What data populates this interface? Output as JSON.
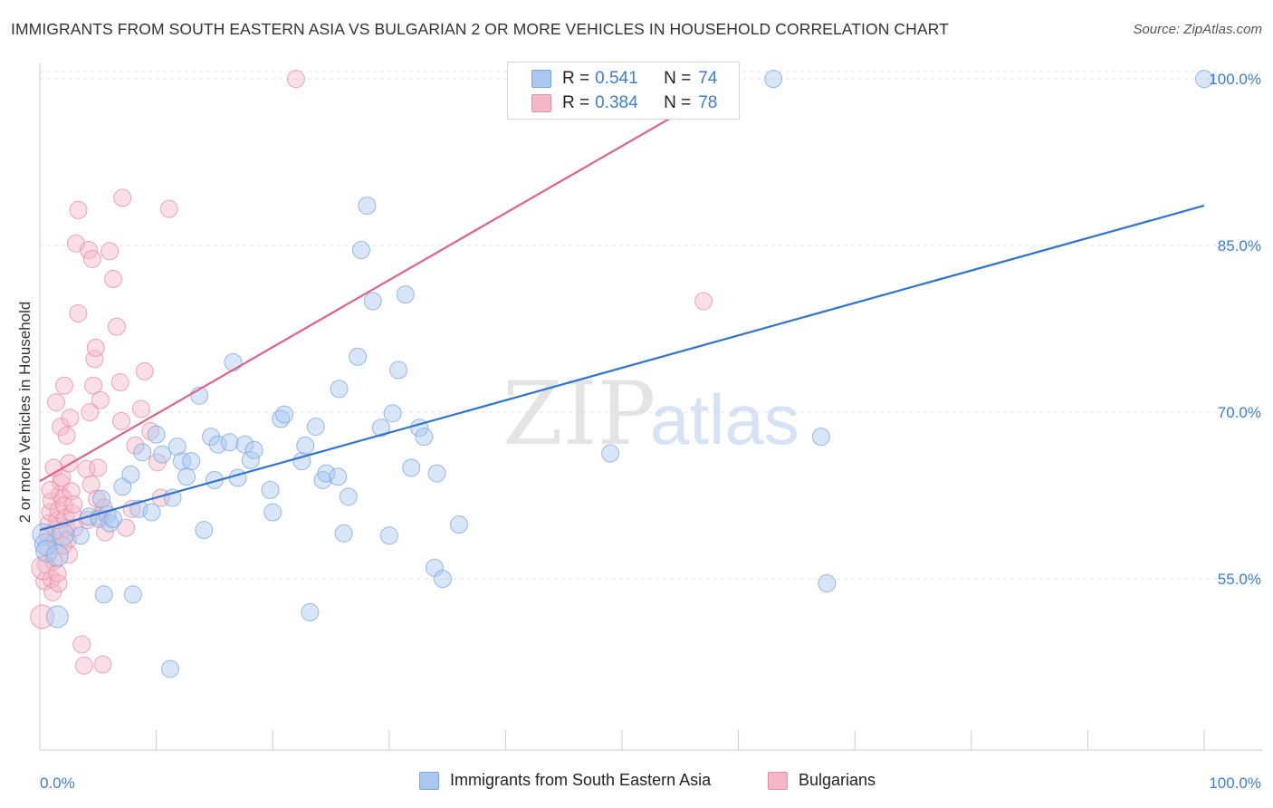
{
  "title": "IMMIGRANTS FROM SOUTH EASTERN ASIA VS BULGARIAN 2 OR MORE VEHICLES IN HOUSEHOLD CORRELATION CHART",
  "source": "Source: ZipAtlas.com",
  "watermark": {
    "zip": "ZIP",
    "atlas": "atlas"
  },
  "legend": {
    "r_label": "R =",
    "n_label": "N =",
    "series": [
      {
        "r": "0.541",
        "n": "74",
        "color": "#a9c7ef"
      },
      {
        "r": "0.384",
        "n": "78",
        "color": "#f4b7c8"
      }
    ]
  },
  "bottom_legend": [
    "Immigrants from South Eastern Asia",
    "Bulgarians"
  ],
  "chart_data": {
    "type": "scatter",
    "title": "IMMIGRANTS FROM SOUTH EASTERN ASIA VS BULGARIAN 2 OR MORE VEHICLES IN HOUSEHOLD CORRELATION CHART",
    "xlabel": "",
    "ylabel": "2 or more Vehicles in Household",
    "xlim": [
      0,
      100
    ],
    "ylim": [
      39.6,
      101.4
    ],
    "x_tick_labels": [
      "0.0%",
      "100.0%"
    ],
    "y_ticks": [
      55.0,
      70.0,
      85.0,
      100.0
    ],
    "y_tick_labels": [
      "55.0%",
      "70.0%",
      "85.0%",
      "100.0%"
    ],
    "grid": "horizontal dashed",
    "legend_position": "top-center",
    "series": [
      {
        "name": "Immigrants from South Eastern Asia",
        "color": "#a9c7ef",
        "stroke": "#7aa6df",
        "trend": {
          "color": "#2e74d0",
          "x": [
            0,
            100
          ],
          "y": [
            59.4,
            88.6
          ]
        },
        "points": [
          [
            0.3,
            59.0
          ],
          [
            0.5,
            58.1
          ],
          [
            0.6,
            57.5
          ],
          [
            1.5,
            57.1
          ],
          [
            1.5,
            51.6
          ],
          [
            3.5,
            58.9
          ],
          [
            4.2,
            60.6
          ],
          [
            5.1,
            60.4
          ],
          [
            5.3,
            62.2
          ],
          [
            5.5,
            53.6
          ],
          [
            5.8,
            60.8
          ],
          [
            6.0,
            60.0
          ],
          [
            6.3,
            60.4
          ],
          [
            7.1,
            63.3
          ],
          [
            7.8,
            64.4
          ],
          [
            8.0,
            53.6
          ],
          [
            8.5,
            61.3
          ],
          [
            8.8,
            66.4
          ],
          [
            9.6,
            61.0
          ],
          [
            10.0,
            68.0
          ],
          [
            10.5,
            66.2
          ],
          [
            11.2,
            46.9
          ],
          [
            11.4,
            62.3
          ],
          [
            11.8,
            66.9
          ],
          [
            12.2,
            65.6
          ],
          [
            12.6,
            64.2
          ],
          [
            13.0,
            65.6
          ],
          [
            13.7,
            71.5
          ],
          [
            14.1,
            59.4
          ],
          [
            14.7,
            67.8
          ],
          [
            15.0,
            63.9
          ],
          [
            15.3,
            67.1
          ],
          [
            16.3,
            67.3
          ],
          [
            16.6,
            74.5
          ],
          [
            17.0,
            64.1
          ],
          [
            17.6,
            67.1
          ],
          [
            18.1,
            65.7
          ],
          [
            18.4,
            66.6
          ],
          [
            19.8,
            63.0
          ],
          [
            20.0,
            61.0
          ],
          [
            20.7,
            69.4
          ],
          [
            21.0,
            69.8
          ],
          [
            22.5,
            65.6
          ],
          [
            22.8,
            67.0
          ],
          [
            23.2,
            52.0
          ],
          [
            23.7,
            68.7
          ],
          [
            24.3,
            63.9
          ],
          [
            24.6,
            64.5
          ],
          [
            25.6,
            64.2
          ],
          [
            25.7,
            72.1
          ],
          [
            26.5,
            62.4
          ],
          [
            26.1,
            59.1
          ],
          [
            27.3,
            75.0
          ],
          [
            27.6,
            84.6
          ],
          [
            28.1,
            88.6
          ],
          [
            28.6,
            80.0
          ],
          [
            29.3,
            68.6
          ],
          [
            30.0,
            58.9
          ],
          [
            30.3,
            69.9
          ],
          [
            30.8,
            73.8
          ],
          [
            31.4,
            80.6
          ],
          [
            31.9,
            65.0
          ],
          [
            32.6,
            68.6
          ],
          [
            33.0,
            67.8
          ],
          [
            33.9,
            56.0
          ],
          [
            34.1,
            64.5
          ],
          [
            34.6,
            55.0
          ],
          [
            36.0,
            59.9
          ],
          [
            49.0,
            66.3
          ],
          [
            63.0,
            100.0
          ],
          [
            67.1,
            67.8
          ],
          [
            67.6,
            54.6
          ],
          [
            100.0,
            100.0
          ],
          [
            2.0,
            59.0
          ]
        ],
        "sizes_note": "most points r=10; larger markers at left edge"
      },
      {
        "name": "Bulgarians",
        "color": "#f4b7c8",
        "stroke": "#e98aa6",
        "trend": {
          "color": "#e0608a",
          "x": [
            0,
            60.0
          ],
          "y": [
            63.8,
            100.0
          ]
        },
        "points": [
          [
            0.2,
            51.6
          ],
          [
            0.4,
            54.8
          ],
          [
            0.5,
            56.3
          ],
          [
            0.6,
            57.9
          ],
          [
            0.7,
            59.0
          ],
          [
            0.8,
            60.0
          ],
          [
            0.9,
            61.0
          ],
          [
            1.0,
            62.0
          ],
          [
            1.0,
            55.0
          ],
          [
            1.1,
            53.8
          ],
          [
            1.2,
            56.6
          ],
          [
            1.3,
            58.4
          ],
          [
            1.4,
            59.4
          ],
          [
            1.5,
            60.3
          ],
          [
            1.6,
            61.2
          ],
          [
            1.7,
            62.6
          ],
          [
            1.8,
            63.7
          ],
          [
            1.9,
            64.1
          ],
          [
            2.0,
            62.3
          ],
          [
            2.1,
            61.6
          ],
          [
            2.2,
            60.5
          ],
          [
            2.3,
            59.6
          ],
          [
            2.4,
            58.5
          ],
          [
            2.5,
            57.2
          ],
          [
            1.6,
            54.6
          ],
          [
            1.4,
            70.9
          ],
          [
            1.8,
            68.7
          ],
          [
            2.1,
            72.4
          ],
          [
            2.3,
            67.9
          ],
          [
            2.5,
            65.4
          ],
          [
            2.6,
            69.5
          ],
          [
            2.7,
            62.9
          ],
          [
            2.8,
            60.9
          ],
          [
            2.9,
            61.7
          ],
          [
            3.0,
            59.6
          ],
          [
            3.1,
            85.2
          ],
          [
            3.3,
            88.2
          ],
          [
            3.3,
            78.9
          ],
          [
            3.6,
            49.1
          ],
          [
            3.8,
            47.2
          ],
          [
            4.0,
            64.9
          ],
          [
            4.1,
            60.3
          ],
          [
            4.2,
            84.6
          ],
          [
            4.3,
            70.0
          ],
          [
            4.4,
            63.5
          ],
          [
            4.5,
            83.8
          ],
          [
            4.6,
            72.4
          ],
          [
            4.7,
            74.8
          ],
          [
            4.8,
            75.8
          ],
          [
            4.9,
            62.2
          ],
          [
            5.0,
            65.0
          ],
          [
            5.1,
            60.6
          ],
          [
            5.2,
            71.1
          ],
          [
            5.4,
            47.3
          ],
          [
            5.5,
            61.4
          ],
          [
            5.6,
            59.2
          ],
          [
            6.0,
            84.5
          ],
          [
            6.3,
            82.0
          ],
          [
            6.6,
            77.7
          ],
          [
            6.9,
            72.7
          ],
          [
            7.0,
            69.2
          ],
          [
            7.1,
            89.3
          ],
          [
            7.4,
            59.6
          ],
          [
            7.9,
            61.3
          ],
          [
            8.2,
            67.0
          ],
          [
            8.7,
            70.3
          ],
          [
            9.0,
            73.7
          ],
          [
            9.5,
            68.3
          ],
          [
            10.1,
            65.5
          ],
          [
            10.4,
            62.3
          ],
          [
            11.1,
            88.3
          ],
          [
            22.0,
            100.0
          ],
          [
            57.0,
            80.0
          ],
          [
            0.3,
            56.0
          ],
          [
            0.9,
            63.0
          ],
          [
            1.2,
            65.0
          ],
          [
            2.0,
            58.0
          ],
          [
            1.5,
            55.5
          ]
        ]
      }
    ]
  }
}
